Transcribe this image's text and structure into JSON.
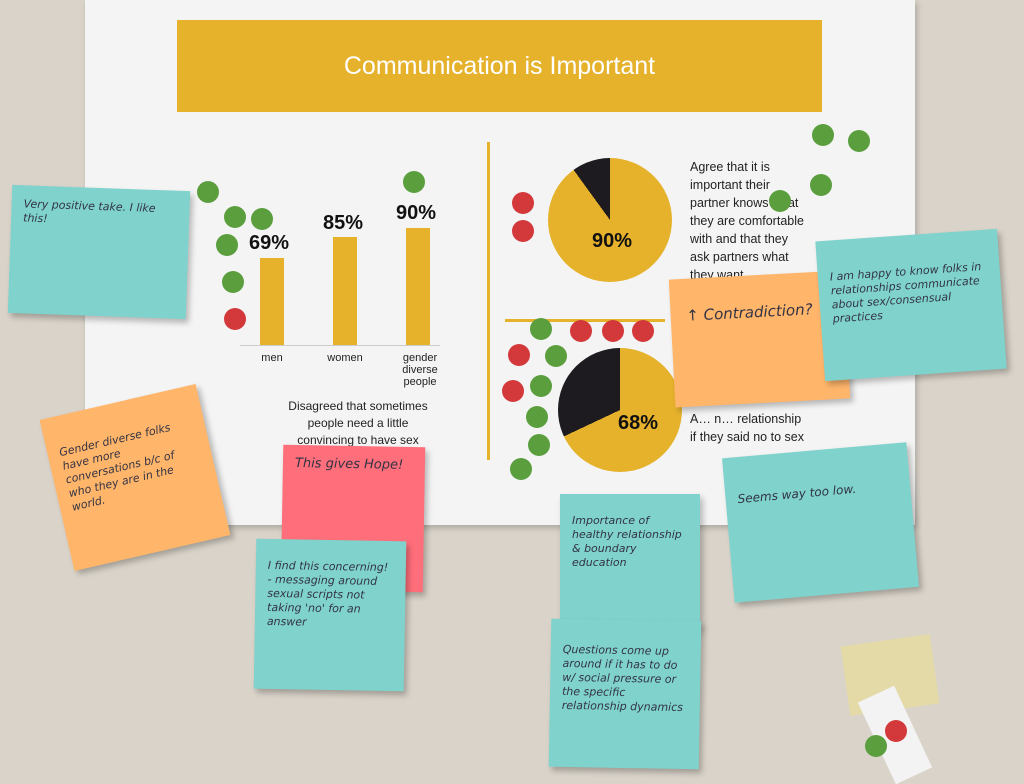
{
  "poster": {
    "title": "Communication is Important",
    "bars": [
      {
        "label": "men",
        "value": "69%",
        "fraction": 0.69
      },
      {
        "label": "women",
        "value": "85%",
        "fraction": 0.85
      },
      {
        "label": "gender diverse people",
        "value": "90%",
        "fraction": 0.9
      }
    ],
    "bars_caption": "Disagreed that sometimes people need a little convincing to have sex",
    "pie1": {
      "value": "90%",
      "fraction": 0.9,
      "caption": "Agree that it is important their partner knows what they are comfortable with and that they ask partners what they want"
    },
    "pie2": {
      "value": "68%",
      "fraction": 0.68,
      "caption_visible": "A… n… relationship if they said no to sex"
    }
  },
  "colors": {
    "accent": "#e6b22c",
    "dot_green": "#5a9e3e",
    "dot_red": "#d3393b",
    "note_blue": "#7fd3cc",
    "note_orange": "#ffb56a",
    "note_pink": "#ff6f7b"
  },
  "notes": [
    {
      "text": "Very positive take. I like this!"
    },
    {
      "text": "Gender diverse folks have more conversations b/c of who they are in the world."
    },
    {
      "text": "This gives Hope!"
    },
    {
      "text": "I find this concerning! - messaging around sexual scripts not taking 'no' for an answer"
    },
    {
      "text": "Importance of healthy relationship & boundary education"
    },
    {
      "text": "Questions come up around if it has to do w/ social pressure or the specific relationship dynamics"
    },
    {
      "text": "↑ Contradiction? ↓"
    },
    {
      "text": "I am happy to know folks in relationships communicate about sex/consensual practices"
    },
    {
      "text": "Seems way too low."
    }
  ]
}
